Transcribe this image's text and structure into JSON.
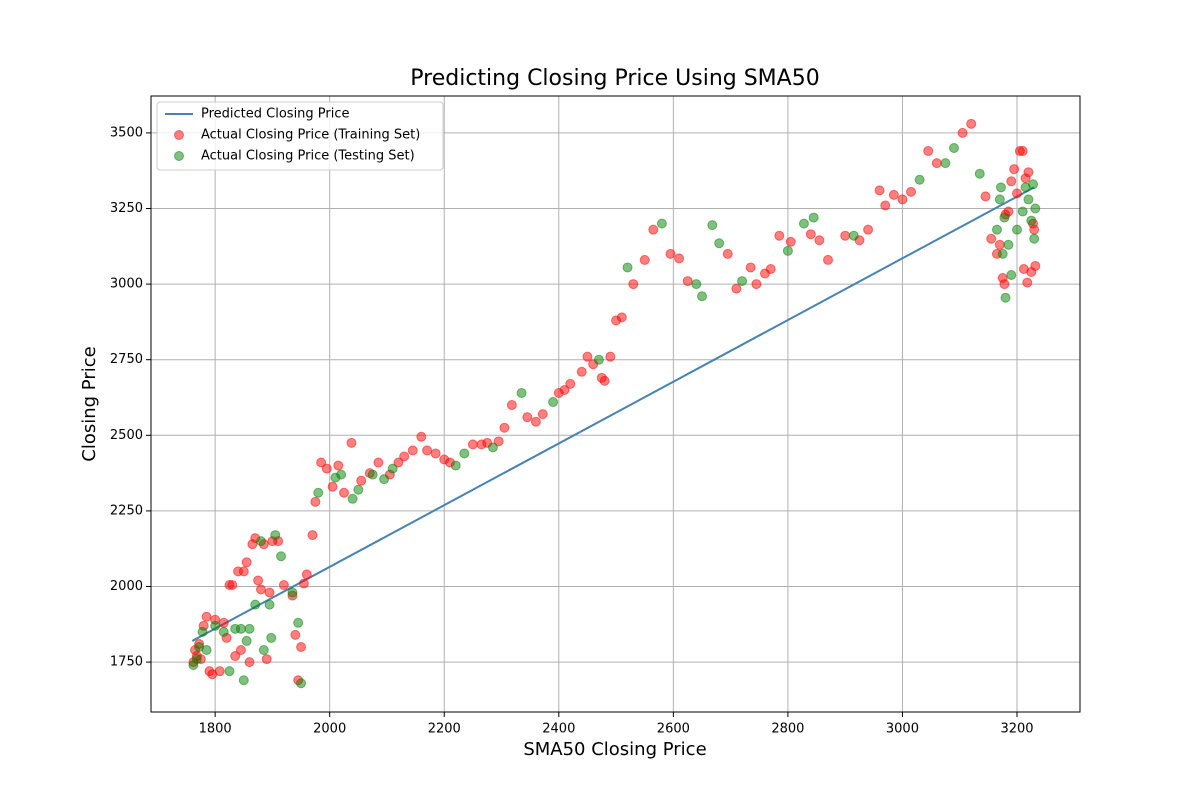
{
  "chart_data": {
    "type": "scatter",
    "title": "Predicting Closing Price Using SMA50",
    "x_label": "SMA50 Closing Price",
    "y_label": "Closing Price",
    "xlim": [
      1688,
      3310
    ],
    "ylim": [
      1585,
      3622
    ],
    "xticks": [
      1800,
      2000,
      2200,
      2400,
      2600,
      2800,
      3000,
      3200
    ],
    "yticks": [
      1750,
      2000,
      2250,
      2500,
      2750,
      3000,
      3250,
      3500
    ],
    "grid": true,
    "legend": "upper left",
    "series": [
      {
        "name": "Predicted Closing Price",
        "type": "line",
        "color": "#4682b4",
        "x": [
          1760,
          3230
        ],
        "values": [
          1820,
          3320
        ]
      },
      {
        "name": "Actual Closing Price (Training Set)",
        "type": "scatter",
        "color": "#ff0000",
        "x": [
          1762,
          1765,
          1768,
          1772,
          1775,
          1780,
          1785,
          1790,
          1795,
          1800,
          1808,
          1815,
          1820,
          1825,
          1830,
          1835,
          1840,
          1845,
          1850,
          1855,
          1860,
          1865,
          1870,
          1875,
          1880,
          1885,
          1890,
          1895,
          1900,
          1910,
          1920,
          1935,
          1940,
          1945,
          1950,
          1955,
          1960,
          1970,
          1975,
          1985,
          1995,
          2005,
          2015,
          2025,
          2038,
          2055,
          2070,
          2085,
          2105,
          2120,
          2130,
          2145,
          2160,
          2170,
          2185,
          2200,
          2210,
          2250,
          2265,
          2275,
          2295,
          2305,
          2318,
          2345,
          2360,
          2372,
          2400,
          2410,
          2420,
          2440,
          2450,
          2460,
          2475,
          2480,
          2490,
          2500,
          2510,
          2530,
          2550,
          2565,
          2595,
          2610,
          2625,
          2695,
          2710,
          2735,
          2745,
          2760,
          2770,
          2785,
          2805,
          2840,
          2855,
          2870,
          2900,
          2925,
          2940,
          2960,
          2970,
          2985,
          3000,
          3015,
          3045,
          3060,
          3105,
          3120,
          3145,
          3155,
          3165,
          3170,
          3175,
          3178,
          3180,
          3185,
          3190,
          3195,
          3200,
          3205,
          3210,
          3212,
          3215,
          3218,
          3220,
          3225,
          3228,
          3230,
          3232
        ],
        "values": [
          1750,
          1790,
          1770,
          1810,
          1760,
          1870,
          1900,
          1720,
          1710,
          1890,
          1720,
          1880,
          1830,
          2005,
          2005,
          1770,
          2050,
          1790,
          2050,
          2080,
          1750,
          2140,
          2160,
          2020,
          1990,
          2140,
          1760,
          1980,
          2150,
          2150,
          2005,
          1970,
          1840,
          1690,
          1800,
          2010,
          2040,
          2170,
          2280,
          2410,
          2390,
          2330,
          2400,
          2310,
          2475,
          2350,
          2375,
          2410,
          2370,
          2410,
          2430,
          2450,
          2495,
          2450,
          2440,
          2420,
          2410,
          2470,
          2470,
          2475,
          2480,
          2525,
          2600,
          2560,
          2545,
          2570,
          2640,
          2650,
          2670,
          2710,
          2760,
          2735,
          2690,
          2680,
          2760,
          2880,
          2890,
          3000,
          3080,
          3180,
          3100,
          3085,
          3010,
          3100,
          2985,
          3055,
          3000,
          3035,
          3050,
          3160,
          3140,
          3165,
          3145,
          3080,
          3160,
          3145,
          3180,
          3310,
          3260,
          3295,
          3280,
          3305,
          3440,
          3400,
          3500,
          3530,
          3290,
          3150,
          3100,
          3130,
          3020,
          3000,
          3230,
          3240,
          3340,
          3380,
          3300,
          3440,
          3440,
          3050,
          3350,
          3005,
          3370,
          3040,
          3200,
          3180,
          3060
        ]
      },
      {
        "name": "Actual Closing Price (Testing Set)",
        "type": "scatter",
        "color": "#008000",
        "x": [
          1762,
          1768,
          1772,
          1778,
          1785,
          1800,
          1815,
          1825,
          1835,
          1845,
          1850,
          1855,
          1860,
          1870,
          1880,
          1885,
          1895,
          1898,
          1905,
          1915,
          1935,
          1945,
          1950,
          1980,
          2010,
          2020,
          2040,
          2050,
          2075,
          2095,
          2110,
          2220,
          2235,
          2285,
          2335,
          2390,
          2470,
          2520,
          2580,
          2640,
          2650,
          2668,
          2680,
          2720,
          2800,
          2828,
          2845,
          2915,
          3030,
          3075,
          3090,
          3135,
          3165,
          3170,
          3172,
          3175,
          3178,
          3180,
          3185,
          3190,
          3200,
          3210,
          3215,
          3220,
          3225,
          3228,
          3230,
          3232
        ],
        "values": [
          1740,
          1760,
          1800,
          1850,
          1790,
          1870,
          1850,
          1720,
          1860,
          1860,
          1690,
          1820,
          1860,
          1940,
          2150,
          1790,
          1940,
          1830,
          2170,
          2100,
          1980,
          1880,
          1680,
          2310,
          2360,
          2370,
          2290,
          2320,
          2370,
          2355,
          2390,
          2400,
          2440,
          2460,
          2640,
          2610,
          2750,
          3055,
          3200,
          3000,
          2960,
          3195,
          3135,
          3010,
          3110,
          3200,
          3220,
          3160,
          3345,
          3400,
          3450,
          3365,
          3180,
          3280,
          3320,
          3100,
          3220,
          2955,
          3130,
          3030,
          3180,
          3240,
          3320,
          3280,
          3210,
          3330,
          3150,
          3250
        ]
      }
    ]
  }
}
